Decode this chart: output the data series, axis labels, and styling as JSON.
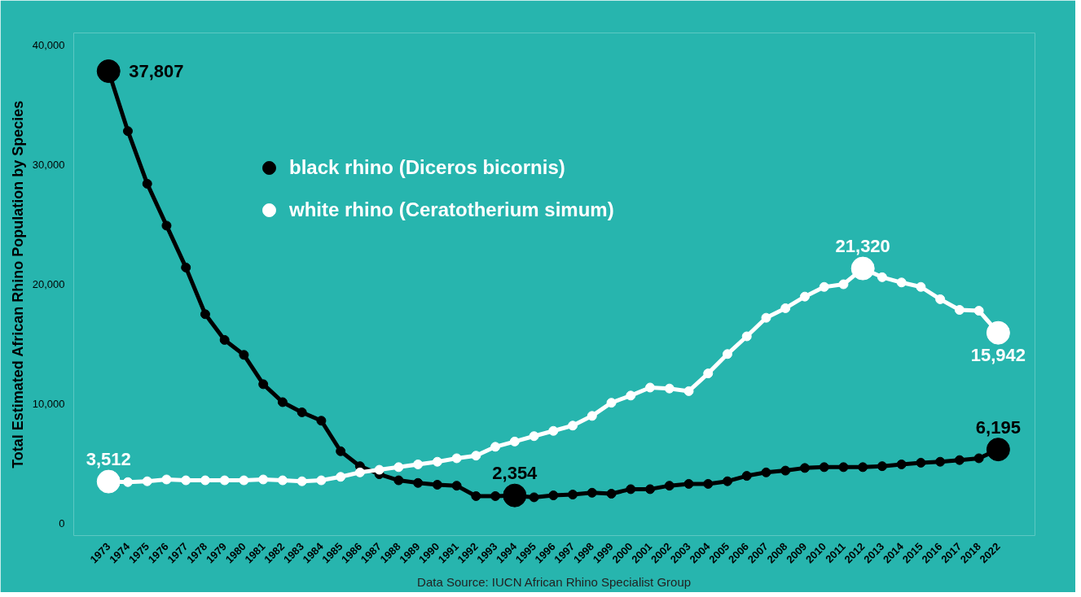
{
  "chart_data": {
    "type": "line",
    "ylabel": "Total Estimated African Rhino Population by Species",
    "categories": [
      "1973",
      "1974",
      "1975",
      "1976",
      "1977",
      "1978",
      "1979",
      "1980",
      "1981",
      "1982",
      "1983",
      "1984",
      "1985",
      "1986",
      "1987",
      "1988",
      "1989",
      "1990",
      "1991",
      "1992",
      "1993",
      "1994",
      "1995",
      "1996",
      "1997",
      "1998",
      "1999",
      "2000",
      "2001",
      "2002",
      "2003",
      "2004",
      "2005",
      "2006",
      "2007",
      "2008",
      "2009",
      "2010",
      "2011",
      "2012",
      "2013",
      "2014",
      "2015",
      "2016",
      "2017",
      "2018",
      "2022"
    ],
    "series": [
      {
        "name": "black rhino (Diceros bicornis)",
        "color": "#000000",
        "values": [
          37807,
          32800,
          28400,
          24900,
          21400,
          17500,
          15350,
          14100,
          11650,
          10150,
          9300,
          8600,
          6050,
          4800,
          4130,
          3620,
          3400,
          3250,
          3170,
          2300,
          2300,
          2354,
          2200,
          2360,
          2430,
          2580,
          2500,
          2880,
          2880,
          3170,
          3320,
          3320,
          3540,
          3990,
          4280,
          4430,
          4650,
          4720,
          4720,
          4720,
          4800,
          4950,
          5090,
          5170,
          5310,
          5460,
          6195
        ],
        "value_labels": [
          "37,807",
          null,
          null,
          null,
          null,
          null,
          null,
          null,
          null,
          null,
          null,
          null,
          null,
          null,
          null,
          null,
          null,
          null,
          null,
          null,
          null,
          "2,354",
          null,
          null,
          null,
          null,
          null,
          null,
          null,
          null,
          null,
          null,
          null,
          null,
          null,
          null,
          null,
          null,
          null,
          null,
          null,
          null,
          null,
          null,
          null,
          null,
          "6,195"
        ]
      },
      {
        "name": "white rhino (Ceratotherium simum)",
        "color": "#ffffff",
        "values": [
          3512,
          3470,
          3540,
          3690,
          3620,
          3620,
          3620,
          3620,
          3690,
          3620,
          3540,
          3620,
          3910,
          4280,
          4500,
          4720,
          4950,
          5170,
          5460,
          5680,
          6420,
          6860,
          7310,
          7750,
          8190,
          9000,
          10100,
          10700,
          11370,
          11290,
          11070,
          12550,
          14170,
          15650,
          17200,
          18000,
          18970,
          19780,
          20000,
          21320,
          20590,
          20150,
          19780,
          18750,
          17860,
          17790,
          15942
        ],
        "value_labels": [
          "3,512",
          null,
          null,
          null,
          null,
          null,
          null,
          null,
          null,
          null,
          null,
          null,
          null,
          null,
          null,
          null,
          null,
          null,
          null,
          null,
          null,
          null,
          null,
          null,
          null,
          null,
          null,
          null,
          null,
          null,
          null,
          null,
          null,
          null,
          null,
          null,
          null,
          null,
          null,
          "21,320",
          null,
          null,
          null,
          null,
          null,
          null,
          "15,942"
        ]
      }
    ],
    "ylim": [
      -1000,
      41000
    ],
    "yticks": [
      0,
      {
        "value": 10000,
        "label": "10,000"
      },
      {
        "value": 20000,
        "label": "20,000"
      },
      {
        "value": 30000,
        "label": "30,000"
      },
      {
        "value": 40000,
        "label": "40,000"
      }
    ],
    "grid": false,
    "legend": "top",
    "marker": "circle",
    "line_style": "solid",
    "annotations": [
      "Data Source: IUCN African Rhino Specialist Group"
    ]
  }
}
